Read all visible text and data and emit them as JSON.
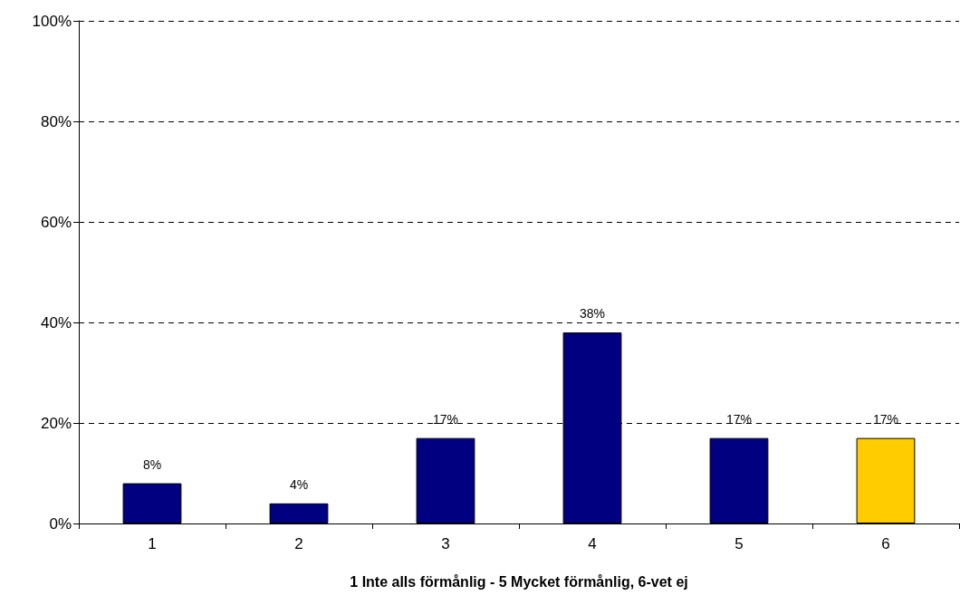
{
  "chart_data": {
    "type": "bar",
    "xlabel": "1 Inte alls förmånlig - 5 Mycket förmånlig, 6-vet ej",
    "categories": [
      "1",
      "2",
      "3",
      "4",
      "5",
      "6"
    ],
    "values": [
      8,
      4,
      17,
      38,
      17,
      17
    ],
    "value_labels": [
      "8%",
      "4%",
      "17%",
      "38%",
      "17%",
      "17%"
    ],
    "colors": [
      "#000080",
      "#000080",
      "#000080",
      "#000080",
      "#000080",
      "#ffcc00"
    ],
    "ylim": [
      0,
      100
    ],
    "yticks": [
      {
        "value": 0,
        "label": "0%"
      },
      {
        "value": 20,
        "label": "20%"
      },
      {
        "value": 40,
        "label": "40%"
      },
      {
        "value": 60,
        "label": "60%"
      },
      {
        "value": 80,
        "label": "80%"
      },
      {
        "value": 100,
        "label": "100%"
      }
    ],
    "grid": "y"
  }
}
